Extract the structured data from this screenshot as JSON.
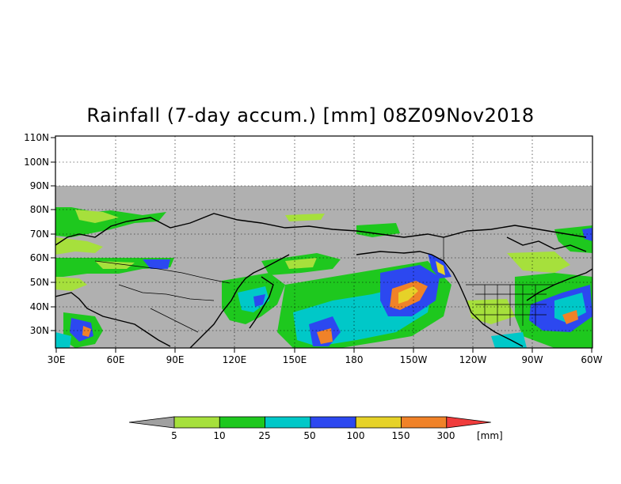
{
  "title": "Rainfall (7-day accum.) [mm] 08Z09Nov2018",
  "y_ticks": [
    "110N",
    "100N",
    "90N",
    "80N",
    "70N",
    "60N",
    "50N",
    "40N",
    "30N"
  ],
  "x_ticks": [
    "30E",
    "60E",
    "90E",
    "120E",
    "150E",
    "180",
    "150W",
    "120W",
    "90W",
    "60W"
  ],
  "legend": {
    "labels": [
      "5",
      "10",
      "25",
      "50",
      "100",
      "150",
      "300"
    ],
    "unit": "[mm]",
    "colors": [
      "#a0a0a0",
      "#a6e03c",
      "#1ec81e",
      "#00c8c8",
      "#2c48f0",
      "#e6d228",
      "#f08228",
      "#f03c3c"
    ]
  },
  "colors": {
    "no_data_gray": "#b0b0b0",
    "coast": "#000000"
  }
}
